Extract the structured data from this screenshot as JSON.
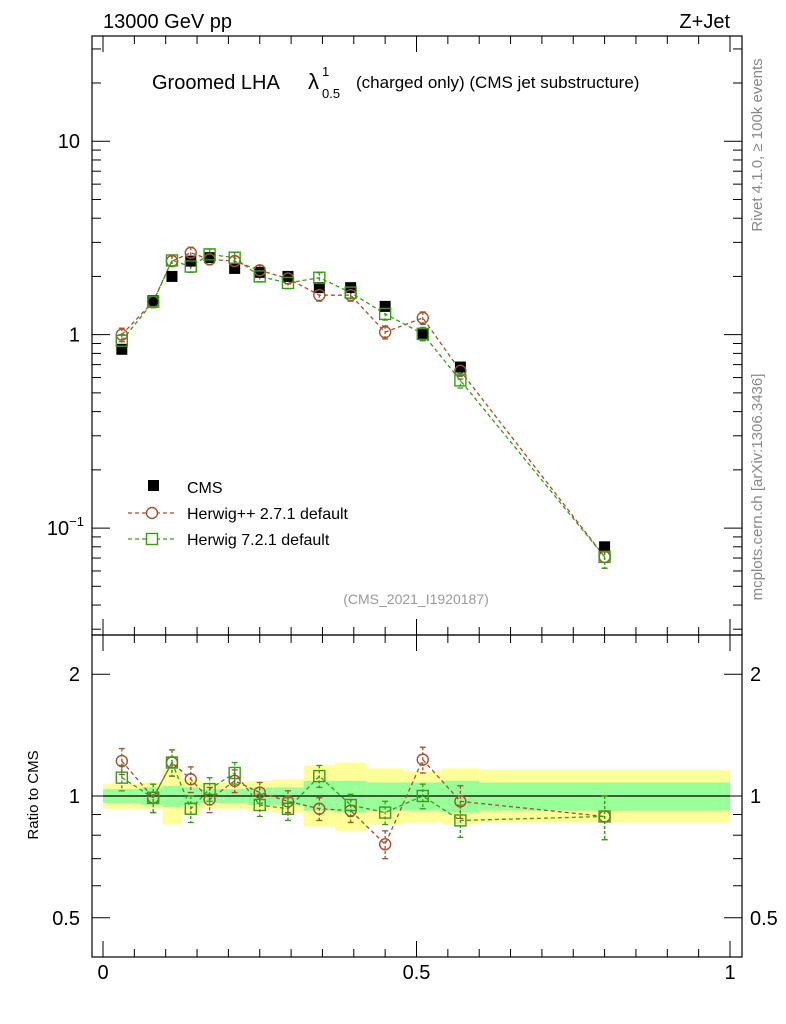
{
  "header": {
    "energy_label": "13000 GeV pp",
    "process_label": "Z+Jet"
  },
  "title": {
    "main": "Groomed LHA",
    "symbol": "λ",
    "superscript": "1",
    "subscript": "0.5",
    "suffix": "(charged only) (CMS jet substructure)"
  },
  "side_labels": {
    "rivet": "Rivet 4.1.0, ≥ 100k events",
    "mcplots": "mcplots.cern.ch [arXiv:1306.3436]"
  },
  "analysis_id": "(CMS_2021_I1920187)",
  "legend": {
    "cms": "CMS",
    "herwigpp": "Herwig++ 2.7.1 default",
    "herwig7": "Herwig 7.2.1 default"
  },
  "ratio_ylabel": "Ratio to CMS",
  "colors": {
    "cms": "#000000",
    "herwigpp": "#a0522d",
    "herwig7": "#3a9a1a",
    "band_inner": "#99ff99",
    "band_outer": "#ffff99"
  },
  "chart_data": [
    {
      "type": "scatter",
      "panel": "main",
      "yscale": "log",
      "xlim": [
        0,
        1
      ],
      "ylim": [
        0.028,
        35
      ],
      "yticks": [
        0.1,
        1,
        10
      ],
      "ytick_labels": [
        "10^{-1}",
        "1",
        "10"
      ],
      "series": [
        {
          "name": "CMS",
          "x": [
            0.03,
            0.08,
            0.11,
            0.14,
            0.17,
            0.21,
            0.25,
            0.295,
            0.345,
            0.395,
            0.45,
            0.51,
            0.57,
            0.8
          ],
          "y": [
            0.84,
            1.5,
            2.0,
            2.4,
            2.5,
            2.2,
            2.1,
            2.0,
            1.75,
            1.75,
            1.4,
            1.0,
            0.68,
            0.08
          ]
        },
        {
          "name": "Herwig++ 2.7.1 default",
          "x": [
            0.03,
            0.08,
            0.11,
            0.14,
            0.17,
            0.21,
            0.25,
            0.295,
            0.345,
            0.395,
            0.45,
            0.51,
            0.57,
            0.8
          ],
          "y": [
            1.0,
            1.48,
            2.4,
            2.65,
            2.45,
            2.4,
            2.15,
            1.95,
            1.6,
            1.6,
            1.03,
            1.22,
            0.65,
            0.071
          ],
          "yerr": [
            0.08,
            0.1,
            0.15,
            0.18,
            0.15,
            0.15,
            0.13,
            0.12,
            0.11,
            0.11,
            0.08,
            0.09,
            0.06,
            0.009
          ]
        },
        {
          "name": "Herwig 7.2.1 default",
          "x": [
            0.03,
            0.08,
            0.11,
            0.14,
            0.17,
            0.21,
            0.25,
            0.295,
            0.345,
            0.395,
            0.45,
            0.51,
            0.57,
            0.8
          ],
          "y": [
            0.93,
            1.48,
            2.42,
            2.25,
            2.6,
            2.5,
            2.0,
            1.85,
            1.97,
            1.65,
            1.28,
            1.01,
            0.58,
            0.071
          ],
          "yerr": [
            0.07,
            0.1,
            0.15,
            0.15,
            0.17,
            0.16,
            0.12,
            0.12,
            0.12,
            0.11,
            0.09,
            0.08,
            0.05,
            0.009
          ]
        }
      ]
    },
    {
      "type": "scatter",
      "panel": "ratio",
      "ylabel": "Ratio to CMS",
      "yscale": "log",
      "xlim": [
        0,
        1
      ],
      "ylim": [
        0.4,
        2.5
      ],
      "xticks": [
        0,
        0.5,
        1
      ],
      "xtick_labels": [
        "0",
        "0.5",
        "1"
      ],
      "yticks": [
        0.5,
        1,
        2
      ],
      "ytick_labels": [
        "0.5",
        "1",
        "2"
      ],
      "bands": {
        "edges": [
          0.0,
          0.06,
          0.095,
          0.125,
          0.155,
          0.19,
          0.23,
          0.27,
          0.32,
          0.37,
          0.42,
          0.48,
          0.54,
          0.6,
          1.0
        ],
        "inner_lo": [
          0.96,
          0.95,
          0.94,
          0.95,
          0.96,
          0.96,
          0.95,
          0.95,
          0.92,
          0.91,
          0.92,
          0.92,
          0.91,
          0.92
        ],
        "inner_hi": [
          1.04,
          1.05,
          1.06,
          1.05,
          1.04,
          1.04,
          1.05,
          1.05,
          1.09,
          1.09,
          1.08,
          1.08,
          1.09,
          1.08
        ],
        "outer_lo": [
          0.93,
          0.93,
          0.85,
          0.9,
          0.93,
          0.93,
          0.92,
          0.91,
          0.84,
          0.82,
          0.85,
          0.86,
          0.85,
          0.86
        ],
        "outer_hi": [
          1.07,
          1.08,
          1.16,
          1.1,
          1.08,
          1.08,
          1.09,
          1.1,
          1.19,
          1.21,
          1.17,
          1.15,
          1.17,
          1.16
        ]
      },
      "series": [
        {
          "name": "Herwig++ 2.7.1 default",
          "x": [
            0.03,
            0.08,
            0.11,
            0.14,
            0.17,
            0.21,
            0.25,
            0.295,
            0.345,
            0.395,
            0.45,
            0.51,
            0.57,
            0.8
          ],
          "y": [
            1.22,
            0.99,
            1.21,
            1.1,
            0.98,
            1.09,
            1.02,
            0.97,
            0.93,
            0.92,
            0.76,
            1.23,
            0.97,
            0.89
          ],
          "yerr": [
            0.09,
            0.08,
            0.09,
            0.08,
            0.07,
            0.07,
            0.06,
            0.06,
            0.06,
            0.06,
            0.06,
            0.09,
            0.09,
            0.11
          ]
        },
        {
          "name": "Herwig 7.2.1 default",
          "x": [
            0.03,
            0.08,
            0.11,
            0.14,
            0.17,
            0.21,
            0.25,
            0.295,
            0.345,
            0.395,
            0.45,
            0.51,
            0.57,
            0.8
          ],
          "y": [
            1.11,
            0.99,
            1.21,
            0.93,
            1.04,
            1.14,
            0.95,
            0.93,
            1.12,
            0.95,
            0.91,
            1.0,
            0.87,
            0.89
          ],
          "yerr": [
            0.08,
            0.08,
            0.09,
            0.07,
            0.07,
            0.07,
            0.06,
            0.06,
            0.07,
            0.06,
            0.06,
            0.07,
            0.08,
            0.11
          ]
        }
      ]
    }
  ]
}
